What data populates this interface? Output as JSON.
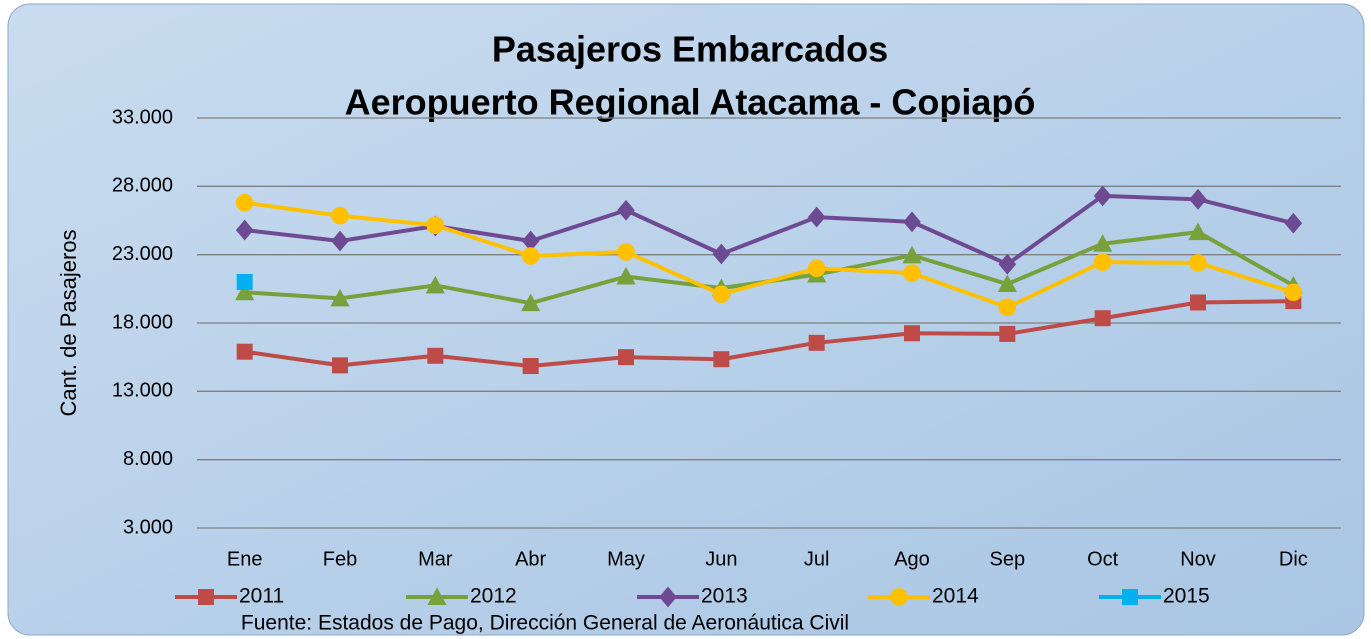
{
  "chart_data": {
    "type": "line",
    "title": "Pasajeros Embarcados",
    "subtitle": "Aeropuerto Regional Atacama - Copiapó",
    "y_label": "Cant. de Pasajeros",
    "source": "Fuente: Estados de Pago, Dirección General de Aeronáutica Civil",
    "categories": [
      "Ene",
      "Feb",
      "Mar",
      "Abr",
      "May",
      "Jun",
      "Jul",
      "Ago",
      "Sep",
      "Oct",
      "Nov",
      "Dic"
    ],
    "series": [
      {
        "name": "2011",
        "color": "#be4b48",
        "marker": "square",
        "values": [
          15900,
          14900,
          15600,
          14850,
          15500,
          15350,
          16550,
          17250,
          17200,
          18350,
          19500,
          19600
        ]
      },
      {
        "name": "2012",
        "color": "#77a13b",
        "marker": "triangle",
        "values": [
          20250,
          19800,
          20750,
          19450,
          21400,
          20550,
          21550,
          22950,
          20850,
          23800,
          24650,
          20750
        ]
      },
      {
        "name": "2013",
        "color": "#6e4a93",
        "marker": "diamond",
        "values": [
          24800,
          24000,
          25100,
          24000,
          26250,
          23050,
          25750,
          25400,
          22300,
          27300,
          27050,
          25300
        ]
      },
      {
        "name": "2014",
        "color": "#ffc000",
        "marker": "circle",
        "values": [
          26800,
          25850,
          25150,
          22900,
          23200,
          20100,
          22000,
          21650,
          19150,
          22450,
          22400,
          20250
        ]
      },
      {
        "name": "2015",
        "color": "#00b0f0",
        "marker": "square",
        "values": [
          21000,
          null,
          null,
          null,
          null,
          null,
          null,
          null,
          null,
          null,
          null,
          null
        ]
      }
    ],
    "ylim": [
      3000,
      33000
    ],
    "yticks": [
      {
        "value": 3000,
        "label": "3.000"
      },
      {
        "value": 8000,
        "label": "8.000"
      },
      {
        "value": 13000,
        "label": "13.000"
      },
      {
        "value": 18000,
        "label": "18.000"
      },
      {
        "value": 23000,
        "label": "23.000"
      },
      {
        "value": 28000,
        "label": "28.000"
      },
      {
        "value": 33000,
        "label": "33.000"
      }
    ],
    "grid": true,
    "legend": "bottom"
  }
}
